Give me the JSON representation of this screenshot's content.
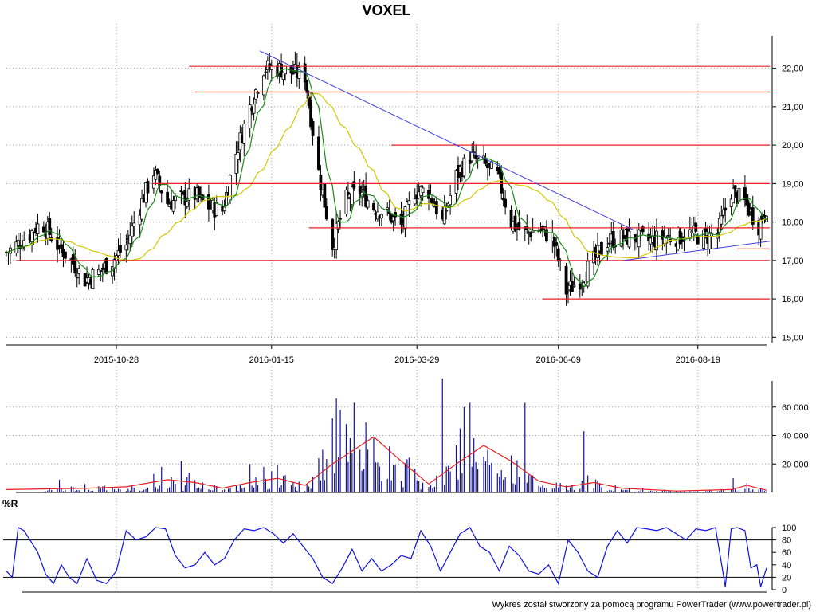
{
  "title": "VOXEL",
  "footer": "Wykres został stworzony za pomocą programu PowerTrader (www.powertrader.pl)",
  "colors": {
    "candle": "#000000",
    "sma_short": "#1a8c1a",
    "sma_long": "#d4c800",
    "hline": "#e82020",
    "trendline": "#4040e0",
    "volume": "#1010a0",
    "volume_avg": "#e82020",
    "williams": "#1010e0",
    "grid": "#a0a0a0"
  },
  "chart_data": [
    {
      "type": "candlestick",
      "title": "VOXEL",
      "x_tick_labels": [
        "2015-10-28",
        "2016-01-15",
        "2016-03-29",
        "2016-06-09",
        "2016-08-19"
      ],
      "x_tick_dates": [
        "2015-10-28",
        "2016-01-15",
        "2016-03-29",
        "2016-06-09",
        "2016-08-19"
      ],
      "x_range": [
        "2015-09-02",
        "2016-09-23"
      ],
      "ylim": [
        14.8,
        22.8
      ],
      "y_tick_labels": [
        "15,00",
        "16,00",
        "17,00",
        "18,00",
        "19,00",
        "20,00",
        "21,00",
        "22,00"
      ],
      "y_ticks": [
        15,
        16,
        17,
        18,
        19,
        20,
        21,
        22
      ],
      "grid": true,
      "close_path": [
        [
          "2015-09-02",
          17.2
        ],
        [
          "2015-09-12",
          17.6
        ],
        [
          "2015-09-20",
          18.0
        ],
        [
          "2015-09-28",
          17.4
        ],
        [
          "2015-10-05",
          17.0
        ],
        [
          "2015-10-12",
          16.5
        ],
        [
          "2015-10-19",
          16.7
        ],
        [
          "2015-10-26",
          17.0
        ],
        [
          "2015-11-02",
          17.4
        ],
        [
          "2015-11-09",
          18.4
        ],
        [
          "2015-11-16",
          19.3
        ],
        [
          "2015-11-23",
          18.5
        ],
        [
          "2015-11-30",
          18.6
        ],
        [
          "2015-12-07",
          18.7
        ],
        [
          "2015-12-14",
          18.4
        ],
        [
          "2015-12-21",
          18.3
        ],
        [
          "2015-12-28",
          19.8
        ],
        [
          "2016-01-04",
          21.0
        ],
        [
          "2016-01-11",
          22.0
        ],
        [
          "2016-01-18",
          22.0
        ],
        [
          "2016-01-25",
          21.9
        ],
        [
          "2016-02-01",
          21.8
        ],
        [
          "2016-02-08",
          19.3
        ],
        [
          "2016-02-15",
          17.4
        ],
        [
          "2016-02-22",
          18.6
        ],
        [
          "2016-02-29",
          18.8
        ],
        [
          "2016-03-07",
          18.4
        ],
        [
          "2016-03-14",
          18.2
        ],
        [
          "2016-03-21",
          17.9
        ],
        [
          "2016-03-28",
          18.8
        ],
        [
          "2016-04-04",
          18.8
        ],
        [
          "2016-04-11",
          18.0
        ],
        [
          "2016-04-18",
          19.2
        ],
        [
          "2016-04-25",
          19.7
        ],
        [
          "2016-05-02",
          19.5
        ],
        [
          "2016-05-09",
          19.2
        ],
        [
          "2016-05-16",
          18.0
        ],
        [
          "2016-05-23",
          17.7
        ],
        [
          "2016-05-30",
          17.8
        ],
        [
          "2016-06-06",
          17.6
        ],
        [
          "2016-06-13",
          16.2
        ],
        [
          "2016-06-20",
          16.5
        ],
        [
          "2016-06-27",
          17.0
        ],
        [
          "2016-07-04",
          17.5
        ],
        [
          "2016-07-11",
          17.6
        ],
        [
          "2016-07-18",
          17.6
        ],
        [
          "2016-07-25",
          17.5
        ],
        [
          "2016-08-01",
          17.6
        ],
        [
          "2016-08-08",
          17.6
        ],
        [
          "2016-08-15",
          17.7
        ],
        [
          "2016-08-22",
          17.6
        ],
        [
          "2016-08-29",
          17.7
        ],
        [
          "2016-09-05",
          18.8
        ],
        [
          "2016-09-12",
          18.5
        ],
        [
          "2016-09-19",
          17.9
        ],
        [
          "2016-09-23",
          18.4
        ]
      ],
      "horizontal_levels": [
        {
          "y": 22.05,
          "from": "2015-12-04",
          "to": "2016-09-25"
        },
        {
          "y": 21.38,
          "from": "2015-12-07",
          "to": "2016-09-25"
        },
        {
          "y": 20.0,
          "from": "2016-03-16",
          "to": "2016-09-25"
        },
        {
          "y": 19.0,
          "from": "2015-11-15",
          "to": "2016-09-25"
        },
        {
          "y": 17.85,
          "from": "2016-02-03",
          "to": "2016-09-25"
        },
        {
          "y": 17.0,
          "from": "2015-09-07",
          "to": "2016-09-25"
        },
        {
          "y": 16.0,
          "from": "2016-06-01",
          "to": "2016-09-25"
        },
        {
          "y": 17.3,
          "from": "2016-09-08",
          "to": "2016-09-25"
        }
      ],
      "trendlines": [
        {
          "from": [
            "2016-01-09",
            22.45
          ],
          "to": [
            "2016-07-17",
            17.8
          ]
        },
        {
          "from": [
            "2016-07-12",
            17.0
          ],
          "to": [
            "2016-09-25",
            17.5
          ]
        }
      ]
    },
    {
      "type": "bar",
      "name": "volume",
      "ylim": [
        0,
        80000
      ],
      "y_tick_labels": [
        "20 000",
        "40 000",
        "60 000"
      ],
      "y_ticks": [
        20000,
        40000,
        60000
      ],
      "bars": [
        [
          "2015-09-29",
          9000
        ],
        [
          "2015-10-12",
          6000
        ],
        [
          "2015-11-16",
          13000
        ],
        [
          "2015-11-20",
          18000
        ],
        [
          "2015-11-30",
          22000
        ],
        [
          "2015-12-04",
          14000
        ],
        [
          "2016-01-04",
          20000
        ],
        [
          "2016-01-11",
          18000
        ],
        [
          "2016-01-15",
          15000
        ],
        [
          "2016-01-18",
          19000
        ],
        [
          "2016-02-08",
          24000
        ],
        [
          "2016-02-10",
          30000
        ],
        [
          "2016-02-15",
          52000
        ],
        [
          "2016-02-17",
          66000
        ],
        [
          "2016-02-19",
          58000
        ],
        [
          "2016-02-22",
          48000
        ],
        [
          "2016-02-24",
          38000
        ],
        [
          "2016-02-26",
          63000
        ],
        [
          "2016-02-29",
          30000
        ],
        [
          "2016-03-04",
          30000
        ],
        [
          "2016-04-11",
          80000
        ],
        [
          "2016-04-18",
          33000
        ],
        [
          "2016-04-20",
          45000
        ],
        [
          "2016-04-22",
          60000
        ],
        [
          "2016-04-25",
          63000
        ],
        [
          "2016-04-27",
          38000
        ],
        [
          "2016-05-02",
          25000
        ],
        [
          "2016-05-16",
          26000
        ],
        [
          "2016-05-23",
          63000
        ],
        [
          "2016-06-22",
          43000
        ],
        [
          "2016-06-24",
          12000
        ],
        [
          "2016-09-03",
          9000
        ],
        [
          "2016-09-06",
          10000
        ]
      ],
      "average_path": [
        [
          "2015-09-02",
          2000
        ],
        [
          "2015-10-14",
          3000
        ],
        [
          "2015-11-02",
          4000
        ],
        [
          "2015-11-23",
          9000
        ],
        [
          "2015-12-07",
          7000
        ],
        [
          "2015-12-21",
          3000
        ],
        [
          "2016-01-04",
          7000
        ],
        [
          "2016-01-18",
          10000
        ],
        [
          "2016-02-01",
          5000
        ],
        [
          "2016-02-15",
          20000
        ],
        [
          "2016-03-07",
          39000
        ],
        [
          "2016-03-21",
          22000
        ],
        [
          "2016-04-04",
          6000
        ],
        [
          "2016-04-18",
          20000
        ],
        [
          "2016-05-02",
          33000
        ],
        [
          "2016-05-16",
          22000
        ],
        [
          "2016-05-30",
          8000
        ],
        [
          "2016-06-13",
          4000
        ],
        [
          "2016-06-27",
          7000
        ],
        [
          "2016-07-11",
          3000
        ],
        [
          "2016-08-08",
          1000
        ],
        [
          "2016-09-05",
          2000
        ],
        [
          "2016-09-13",
          5000
        ],
        [
          "2016-09-23",
          1500
        ]
      ]
    },
    {
      "type": "line",
      "title": "%R",
      "ylim": [
        0,
        100
      ],
      "y_tick_labels": [
        "0",
        "20",
        "40",
        "60",
        "80",
        "100"
      ],
      "y_ticks": [
        0,
        20,
        40,
        60,
        80,
        100
      ],
      "reference_levels": [
        20,
        80
      ],
      "series": [
        {
          "name": "%R",
          "points": [
            [
              "2015-09-02",
              30
            ],
            [
              "2015-09-05",
              20
            ],
            [
              "2015-09-08",
              100
            ],
            [
              "2015-09-11",
              95
            ],
            [
              "2015-09-14",
              80
            ],
            [
              "2015-09-18",
              60
            ],
            [
              "2015-09-22",
              25
            ],
            [
              "2015-09-26",
              10
            ],
            [
              "2015-09-30",
              40
            ],
            [
              "2015-10-04",
              20
            ],
            [
              "2015-10-08",
              10
            ],
            [
              "2015-10-13",
              50
            ],
            [
              "2015-10-18",
              15
            ],
            [
              "2015-10-23",
              10
            ],
            [
              "2015-10-28",
              30
            ],
            [
              "2015-11-02",
              95
            ],
            [
              "2015-11-07",
              80
            ],
            [
              "2015-11-12",
              85
            ],
            [
              "2015-11-17",
              100
            ],
            [
              "2015-11-22",
              98
            ],
            [
              "2015-11-27",
              55
            ],
            [
              "2015-12-02",
              35
            ],
            [
              "2015-12-07",
              40
            ],
            [
              "2015-12-12",
              60
            ],
            [
              "2015-12-17",
              40
            ],
            [
              "2015-12-22",
              50
            ],
            [
              "2015-12-27",
              80
            ],
            [
              "2016-01-01",
              98
            ],
            [
              "2016-01-06",
              95
            ],
            [
              "2016-01-11",
              100
            ],
            [
              "2016-01-16",
              90
            ],
            [
              "2016-01-21",
              75
            ],
            [
              "2016-01-26",
              90
            ],
            [
              "2016-01-31",
              70
            ],
            [
              "2016-02-05",
              50
            ],
            [
              "2016-02-10",
              20
            ],
            [
              "2016-02-15",
              10
            ],
            [
              "2016-02-20",
              35
            ],
            [
              "2016-02-25",
              65
            ],
            [
              "2016-03-01",
              30
            ],
            [
              "2016-03-06",
              50
            ],
            [
              "2016-03-11",
              30
            ],
            [
              "2016-03-16",
              40
            ],
            [
              "2016-03-21",
              55
            ],
            [
              "2016-03-26",
              50
            ],
            [
              "2016-03-31",
              95
            ],
            [
              "2016-04-05",
              70
            ],
            [
              "2016-04-10",
              30
            ],
            [
              "2016-04-15",
              60
            ],
            [
              "2016-04-20",
              90
            ],
            [
              "2016-04-25",
              100
            ],
            [
              "2016-04-30",
              70
            ],
            [
              "2016-05-05",
              60
            ],
            [
              "2016-05-10",
              30
            ],
            [
              "2016-05-15",
              70
            ],
            [
              "2016-05-20",
              55
            ],
            [
              "2016-05-25",
              30
            ],
            [
              "2016-05-30",
              25
            ],
            [
              "2016-06-04",
              40
            ],
            [
              "2016-06-09",
              10
            ],
            [
              "2016-06-14",
              80
            ],
            [
              "2016-06-19",
              60
            ],
            [
              "2016-06-24",
              30
            ],
            [
              "2016-06-29",
              20
            ],
            [
              "2016-07-04",
              70
            ],
            [
              "2016-07-09",
              95
            ],
            [
              "2016-07-14",
              75
            ],
            [
              "2016-07-19",
              100
            ],
            [
              "2016-07-24",
              98
            ],
            [
              "2016-07-29",
              95
            ],
            [
              "2016-08-03",
              100
            ],
            [
              "2016-08-08",
              90
            ],
            [
              "2016-08-13",
              80
            ],
            [
              "2016-08-18",
              98
            ],
            [
              "2016-08-23",
              95
            ],
            [
              "2016-08-28",
              100
            ],
            [
              "2016-09-02",
              5
            ],
            [
              "2016-09-05",
              98
            ],
            [
              "2016-09-08",
              100
            ],
            [
              "2016-09-12",
              95
            ],
            [
              "2016-09-15",
              35
            ],
            [
              "2016-09-18",
              40
            ],
            [
              "2016-09-20",
              5
            ],
            [
              "2016-09-23",
              35
            ]
          ]
        }
      ]
    }
  ]
}
